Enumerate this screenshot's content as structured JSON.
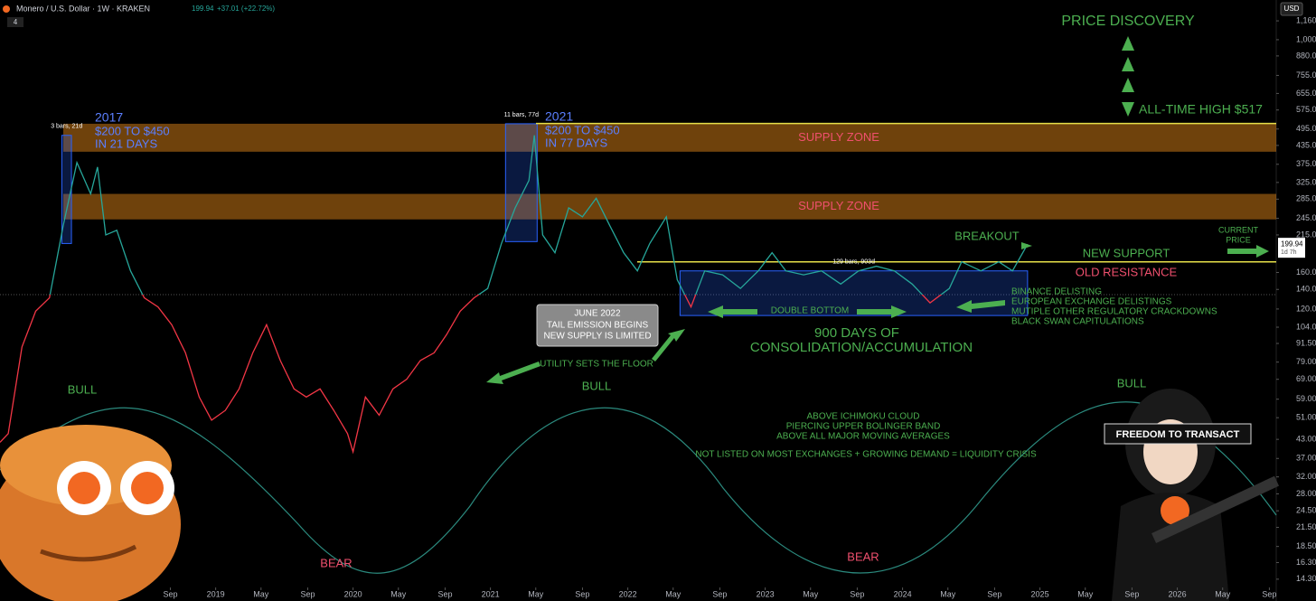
{
  "header": {
    "symbol": "Monero / U.S. Dollar · 1W · KRAKEN",
    "price": "199.94",
    "change": "+37.01 (+22.72%)",
    "indicator_count": "4",
    "currency": "USD",
    "countdown": "1d 7h"
  },
  "chart_data": {
    "type": "line",
    "log_scale": true,
    "xlim": [
      2017.43,
      2026.72
    ],
    "xticks": [
      {
        "value": 2018.67,
        "label": "Sep"
      },
      2019,
      {
        "value": 2019.33,
        "label": "May"
      },
      {
        "value": 2019.67,
        "label": "Sep"
      },
      2020,
      {
        "value": 2020.33,
        "label": "May"
      },
      {
        "value": 2020.67,
        "label": "Sep"
      },
      2021,
      {
        "value": 2021.33,
        "label": "May"
      },
      {
        "value": 2021.67,
        "label": "Sep"
      },
      2022,
      {
        "value": 2022.33,
        "label": "May"
      },
      {
        "value": 2022.67,
        "label": "Sep"
      },
      2023,
      {
        "value": 2023.33,
        "label": "May"
      },
      {
        "value": 2023.67,
        "label": "Sep"
      },
      2024,
      {
        "value": 2024.33,
        "label": "May"
      },
      {
        "value": 2024.67,
        "label": "Sep"
      },
      2025,
      {
        "value": 2025.33,
        "label": "May"
      },
      {
        "value": 2025.67,
        "label": "Sep"
      },
      2026,
      {
        "value": 2026.33,
        "label": "May"
      },
      {
        "value": 2026.67,
        "label": "Sep"
      }
    ],
    "ylim": [
      13.4,
      1367
    ],
    "yticks": [
      {
        "value": 1160,
        "label": "1,160.00"
      },
      {
        "value": 1000,
        "label": "1,000.00"
      },
      {
        "value": 880,
        "label": "880.00"
      },
      {
        "value": 755,
        "label": "755.00"
      },
      {
        "value": 655,
        "label": "655.00"
      },
      {
        "value": 575,
        "label": "575.00"
      },
      {
        "value": 495,
        "label": "495.00"
      },
      {
        "value": 435,
        "label": "435.00"
      },
      {
        "value": 375,
        "label": "375.00"
      },
      {
        "value": 325,
        "label": "325.00"
      },
      {
        "value": 285,
        "label": "285.00"
      },
      {
        "value": 245,
        "label": "245.00"
      },
      {
        "value": 215,
        "label": "215.00"
      },
      {
        "value": 160,
        "label": "160.00"
      },
      {
        "value": 140,
        "label": "140.00"
      },
      {
        "value": 120,
        "label": "120.00"
      },
      {
        "value": 104,
        "label": "104.00"
      },
      {
        "value": 91.5,
        "label": "91.50"
      },
      {
        "value": 79,
        "label": "79.00"
      },
      {
        "value": 69,
        "label": "69.00"
      },
      {
        "value": 59,
        "label": "59.00"
      },
      {
        "value": 51,
        "label": "51.00"
      },
      {
        "value": 43,
        "label": "43.00"
      },
      {
        "value": 37,
        "label": "37.00"
      },
      {
        "value": 32,
        "label": "32.00"
      },
      {
        "value": 28,
        "label": "28.00"
      },
      {
        "value": 24.5,
        "label": "24.50"
      },
      {
        "value": 21.5,
        "label": "21.50"
      },
      {
        "value": 18.5,
        "label": "18.50"
      },
      {
        "value": 16.3,
        "label": "16.30"
      },
      {
        "value": 14.3,
        "label": "14.30"
      }
    ],
    "series": [
      {
        "color": "#26a69a",
        "color_below": "#f23645",
        "x": [
          2017.43,
          2017.49,
          2017.59,
          2017.69,
          2017.79,
          2017.89,
          2017.99,
          2018.09,
          2018.14,
          2018.2,
          2018.28,
          2018.38,
          2018.48,
          2018.58,
          2018.68,
          2018.78,
          2018.88,
          2018.97,
          2019.07,
          2019.17,
          2019.27,
          2019.37,
          2019.47,
          2019.57,
          2019.66,
          2019.76,
          2019.86,
          2019.96,
          2020.0,
          2020.09,
          2020.19,
          2020.29,
          2020.39,
          2020.49,
          2020.59,
          2020.68,
          2020.78,
          2020.88,
          2020.98,
          2021.08,
          2021.18,
          2021.28,
          2021.32,
          2021.38,
          2021.47,
          2021.57,
          2021.67,
          2021.77,
          2021.87,
          2021.97,
          2022.07,
          2022.16,
          2022.28,
          2022.36,
          2022.46,
          2022.56,
          2022.69,
          2022.82,
          2022.95,
          2023.05,
          2023.15,
          2023.28,
          2023.41,
          2023.55,
          2023.68,
          2023.81,
          2023.94,
          2024.07,
          2024.2,
          2024.34,
          2024.43,
          2024.57,
          2024.7,
          2024.8,
          2024.91
        ],
        "values": [
          42,
          45,
          89,
          118,
          131,
          231,
          380,
          297,
          367,
          215,
          223,
          162,
          131,
          122,
          106,
          85,
          60,
          50,
          54,
          64,
          85,
          106,
          80,
          64,
          60,
          64,
          54,
          45,
          39,
          60,
          52,
          64,
          69,
          80,
          85,
          98,
          118,
          131,
          141,
          201,
          266,
          330,
          471,
          215,
          187,
          266,
          248,
          287,
          231,
          187,
          162,
          201,
          248,
          151,
          122,
          162,
          157,
          141,
          162,
          187,
          162,
          157,
          162,
          146,
          162,
          168,
          162,
          146,
          126,
          141,
          174,
          162,
          174,
          162,
          199.94
        ]
      }
    ],
    "zones": [
      {
        "label": "SUPPLY ZONE",
        "range": [
          414,
          516
        ],
        "color": "#f7931a"
      },
      {
        "label": "SUPPLY ZONE",
        "range": [
          243,
          297
        ],
        "color": "#f7931a"
      }
    ],
    "levels": [
      {
        "value": 517,
        "color": "#e6e04a"
      },
      {
        "value": 174,
        "color": "#e6e04a"
      }
    ],
    "measures": [
      {
        "label": "3 bars, 21d",
        "x": [
          2017.88,
          2017.95
        ],
        "y": [
          201,
          471
        ]
      },
      {
        "label": "11 bars, 77d",
        "x": [
          2021.11,
          2021.34
        ],
        "y": [
          204,
          516
        ]
      },
      {
        "label": "129 bars, 903d",
        "x": [
          2022.38,
          2024.91
        ],
        "y": [
          114,
          162
        ]
      }
    ],
    "annotations": [
      "2017",
      "$200 TO $450",
      "IN 21 DAYS",
      "2021",
      "$200 TO $450",
      "IN 77 DAYS",
      "PRICE DISCOVERY",
      "ALL-TIME HIGH $517",
      "BREAKOUT",
      "NEW SUPPORT",
      "OLD RESISTANCE",
      "CURRENT",
      "PRICE",
      "BINANCE DELISTING",
      "EUROPEAN EXCHANGE DELISTINGS",
      "MUTIPLE OTHER REGULATORY CRACKDOWNS",
      "BLACK SWAN CAPITULATIONS",
      "DOUBLE BOTTOM",
      "900 DAYS OF",
      "CONSOLIDATION/ACCUMULATION",
      "JUNE 2022",
      "TAIL EMISSION BEGINS",
      "NEW SUPPLY IS LIMITED",
      "UTILITY SETS THE FLOOR",
      "BULL",
      "BULL",
      "BULL",
      "BEAR",
      "BEAR",
      "ABOVE ICHIMOKU CLOUD",
      "PIERCING UPPER BOLINGER BAND",
      "ABOVE ALL MAJOR MOVING AVERAGES",
      "NOT LISTED ON MOST EXCHANGES + GROWING DEMAND = LIQUIDITY CRISIS",
      "FREEDOM TO TRANSACT"
    ]
  }
}
